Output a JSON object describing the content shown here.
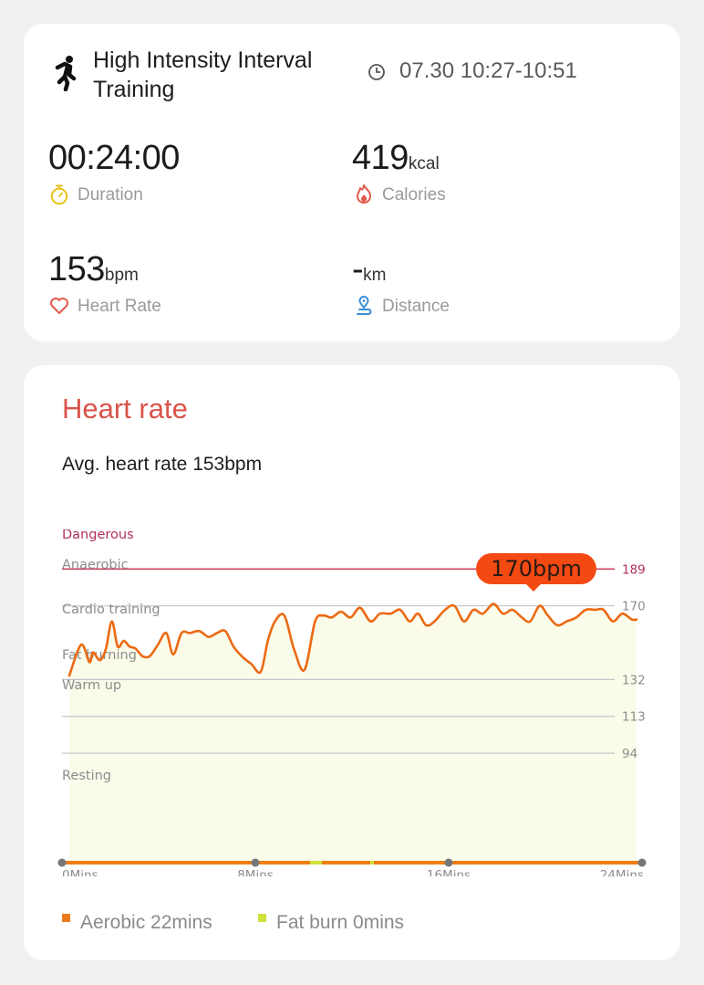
{
  "workout": {
    "type": "High Intensity Interval Training",
    "time_range": "07.30 10:27-10:51",
    "icon": "running-figure-icon"
  },
  "stats": {
    "duration": {
      "value": "00:24:00",
      "unit": "",
      "label": "Duration",
      "icon": "stopwatch-icon",
      "icon_color": "#e8c31a"
    },
    "calories": {
      "value": "419",
      "unit": "kcal",
      "label": "Calories",
      "icon": "flame-icon",
      "icon_color": "#e25a4c"
    },
    "heart_rate": {
      "value": "153",
      "unit": "bpm",
      "label": "Heart Rate",
      "icon": "heart-icon",
      "icon_color": "#e25a4c"
    },
    "distance": {
      "value": "-",
      "unit": "km",
      "label": "Distance",
      "icon": "location-pin-icon",
      "icon_color": "#3a8fd6"
    }
  },
  "heart_rate_section": {
    "title": "Heart rate",
    "avg_text": "Avg. heart rate 153bpm",
    "peak_label": "170bpm",
    "colors": {
      "line": "#ec6a13",
      "fill": "#fafbe9",
      "danger": "#d14466",
      "grid": "#c4c4c4",
      "title": "#d9534a"
    },
    "zones": [
      {
        "label": "Dangerous",
        "threshold": "189"
      },
      {
        "label": "Anaerobic",
        "threshold": "170"
      },
      {
        "label": "Cardio training",
        "threshold": "132"
      },
      {
        "label": "Fat burning",
        "threshold": "113"
      },
      {
        "label": "Warm up",
        "threshold": "94"
      },
      {
        "label": "Resting",
        "threshold": ""
      }
    ],
    "x_ticks": [
      "0Mins",
      "8Mins",
      "16Mins",
      "24Mins"
    ],
    "legend": [
      {
        "label": "Aerobic 22mins",
        "color": "#ec7a1a"
      },
      {
        "label": "Fat burn 0mins",
        "color": "#cfe03a"
      }
    ]
  },
  "chart_data": {
    "type": "area",
    "title": "Heart rate",
    "xlabel": "",
    "ylabel": "",
    "x_unit": "Mins",
    "xlim": [
      0,
      24
    ],
    "ylim": [
      38,
      200
    ],
    "zone_thresholds": [
      94,
      113,
      132,
      170,
      189
    ],
    "series": [
      {
        "x": [
          0,
          0.5,
          0.85,
          1.0,
          1.3,
          1.55,
          1.8,
          2.05,
          2.3,
          2.55,
          2.8,
          3.1,
          3.4,
          3.75,
          4.1,
          4.4,
          4.75,
          5.1,
          5.5,
          5.9,
          6.25,
          6.6,
          6.95,
          7.3,
          7.7,
          8.1,
          8.4,
          8.7,
          9.1,
          9.5,
          9.95,
          10.4,
          10.75,
          11.1,
          11.5,
          11.9,
          12.3,
          12.75,
          13.15,
          13.6,
          14.0,
          14.4,
          14.75,
          15.1,
          15.45,
          15.9,
          16.3,
          16.7,
          17.1,
          17.5,
          17.95,
          18.35,
          18.75,
          19.15,
          19.5,
          19.9,
          20.25,
          20.65,
          21.05,
          21.45,
          21.85,
          22.25,
          22.6,
          23.0,
          23.4,
          23.8,
          24.0
        ],
        "y": [
          134,
          150,
          141,
          146,
          142,
          148,
          162,
          149,
          152,
          149,
          148,
          144,
          144,
          150,
          156,
          145,
          156,
          156,
          157,
          154,
          156,
          157,
          149,
          144,
          140,
          136,
          152,
          162,
          165,
          148,
          137,
          162,
          165,
          164,
          167,
          164,
          169,
          162,
          166,
          166,
          168,
          162,
          166,
          160,
          162,
          168,
          170,
          162,
          168,
          166,
          171,
          166,
          168,
          164,
          162,
          170,
          165,
          160,
          162,
          164,
          168,
          168,
          168,
          162,
          166,
          163,
          163
        ]
      }
    ]
  }
}
